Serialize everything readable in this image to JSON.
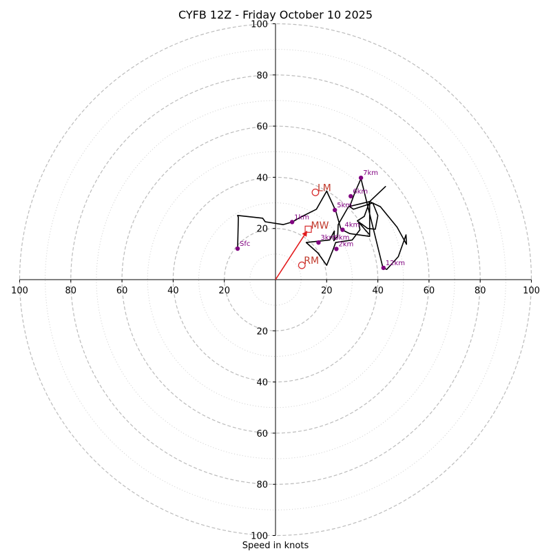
{
  "chart_data": {
    "type": "hodograph",
    "title": "CYFB 12Z - Friday October 10 2025",
    "xlabel": "Speed in knots",
    "range": [
      -100,
      100
    ],
    "rings_major": [
      20,
      40,
      60,
      80,
      100
    ],
    "rings_minor": [
      10,
      30,
      50,
      70,
      90
    ],
    "x_ticks": [
      "100",
      "80",
      "60",
      "40",
      "20",
      "20",
      "40",
      "60",
      "80",
      "100"
    ],
    "x_tick_values": [
      -100,
      -80,
      -60,
      -40,
      -20,
      20,
      40,
      60,
      80,
      100
    ],
    "y_ticks": [
      "100",
      "80",
      "60",
      "40",
      "20",
      "20",
      "40",
      "60",
      "80",
      "100"
    ],
    "y_tick_values": [
      100,
      80,
      60,
      40,
      20,
      -20,
      -40,
      -60,
      -80,
      -100
    ],
    "wind_profile": [
      [
        -14.8,
        12.1
      ],
      [
        -14.5,
        24.3
      ],
      [
        -14.8,
        25.1
      ],
      [
        -5,
        24
      ],
      [
        -4,
        22.6
      ],
      [
        3,
        21.5
      ],
      [
        6.5,
        22.5
      ],
      [
        10,
        24.5
      ],
      [
        16,
        27.5
      ],
      [
        20,
        34.6
      ],
      [
        23.5,
        27
      ],
      [
        25.5,
        20
      ],
      [
        26,
        19.5
      ],
      [
        29,
        18
      ],
      [
        36.8,
        16.9
      ],
      [
        36.8,
        30.5
      ],
      [
        43,
        36.4
      ],
      [
        36.8,
        30.5
      ],
      [
        28.5,
        28.5
      ],
      [
        24.5,
        21.5
      ],
      [
        24.3,
        17
      ],
      [
        22.8,
        15.2
      ],
      [
        23,
        19
      ],
      [
        21.2,
        15.5
      ],
      [
        12,
        14.5
      ],
      [
        16.5,
        10.5
      ],
      [
        20,
        5.6
      ],
      [
        22.6,
        12
      ],
      [
        23.5,
        14.5
      ],
      [
        30,
        15.5
      ],
      [
        33,
        19.5
      ],
      [
        32.5,
        22.5
      ],
      [
        34,
        21.5
      ],
      [
        36,
        20
      ],
      [
        39,
        19.7
      ],
      [
        40,
        25
      ],
      [
        38,
        30
      ],
      [
        30.5,
        27.5
      ],
      [
        29,
        28.5
      ],
      [
        31,
        34
      ],
      [
        33.4,
        39.5
      ],
      [
        42,
        4.6
      ],
      [
        43.5,
        4
      ],
      [
        48,
        9
      ],
      [
        51,
        17.5
      ],
      [
        51.2,
        13.8
      ],
      [
        47.5,
        20.5
      ],
      [
        41,
        28.5
      ],
      [
        36.8,
        30.5
      ],
      [
        34.7,
        24.7
      ],
      [
        32,
        23
      ],
      [
        36.8,
        17.5
      ]
    ],
    "height_markers": [
      {
        "label": "Sfc",
        "u": -14.8,
        "v": 12.1
      },
      {
        "label": "1km",
        "u": 6.5,
        "v": 22.5
      },
      {
        "label": "2km",
        "u": 23.8,
        "v": 12
      },
      {
        "label": "3km",
        "u": 16.8,
        "v": 14.5
      },
      {
        "label": "4km",
        "u": 26.2,
        "v": 19.5
      },
      {
        "label": "5km",
        "u": 23.2,
        "v": 27.2
      },
      {
        "label": "6km",
        "u": 29.4,
        "v": 32.6
      },
      {
        "label": "7km",
        "u": 33.4,
        "v": 39.8
      },
      {
        "label": "12km",
        "u": 42.2,
        "v": 4.6
      },
      {
        "label": "0km",
        "u": 22.2,
        "v": 14.5
      }
    ],
    "storm_motion": {
      "mean_wind": {
        "label": "MW",
        "u": 12.8,
        "v": 19.7
      },
      "left_mover": {
        "label": "LM",
        "u": 15.6,
        "v": 34.1
      },
      "right_mover": {
        "label": "RM",
        "u": 10.3,
        "v": 5.6
      }
    },
    "colors": {
      "grid": "#bbbbbb",
      "profile": "#000000",
      "markers": "#800080",
      "storm_motion": "#d62728",
      "arrow": "#e31a1c"
    }
  }
}
